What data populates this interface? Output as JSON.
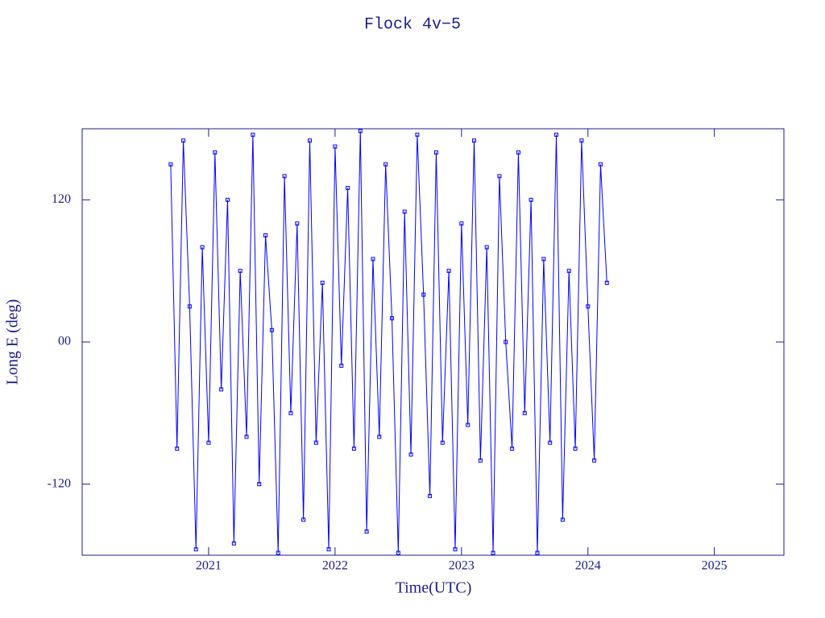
{
  "chart_data": {
    "type": "line",
    "title": "Flock 4v−5",
    "x_label": "Time(UTC)",
    "y_label": "Long E (deg)",
    "x": [
      2020.7,
      2020.75,
      2020.8,
      2020.85,
      2020.9,
      2020.95,
      2021.0,
      2021.05,
      2021.1,
      2021.15,
      2021.2,
      2021.25,
      2021.3,
      2021.35,
      2021.4,
      2021.45,
      2021.5,
      2021.55,
      2021.6,
      2021.65,
      2021.7,
      2021.75,
      2021.8,
      2021.85,
      2021.9,
      2021.95,
      2022.0,
      2022.05,
      2022.1,
      2022.15,
      2022.2,
      2022.25,
      2022.3,
      2022.35,
      2022.4,
      2022.45,
      2022.5,
      2022.55,
      2022.6,
      2022.65,
      2022.7,
      2022.75,
      2022.8,
      2022.85,
      2022.9,
      2022.95,
      2023.0,
      2023.05,
      2023.1,
      2023.15,
      2023.2,
      2023.25,
      2023.3,
      2023.35,
      2023.4,
      2023.45,
      2023.5,
      2023.55,
      2023.6,
      2023.65,
      2023.7,
      2023.75,
      2023.8,
      2023.85,
      2023.9,
      2023.95,
      2024.0,
      2024.05,
      2024.1,
      2024.15
    ],
    "values": [
      150,
      -90,
      170,
      30,
      -175,
      80,
      -85,
      160,
      -40,
      120,
      -170,
      60,
      -80,
      175,
      -120,
      90,
      10,
      -178,
      140,
      -60,
      100,
      -150,
      170,
      -85,
      50,
      -175,
      165,
      -20,
      130,
      -90,
      178,
      -160,
      70,
      -80,
      150,
      20,
      -178,
      110,
      -95,
      175,
      40,
      -130,
      160,
      -85,
      60,
      -175,
      100,
      -70,
      170,
      -100,
      80,
      -178,
      140,
      0,
      -90,
      160,
      -60,
      120,
      -178,
      70,
      -85,
      175,
      -150,
      60,
      -90,
      170,
      30,
      -100,
      150,
      50
    ],
    "color": "#0000ff",
    "axis_color": "#1c1c8c",
    "xlim": [
      2020.0,
      2025.55
    ],
    "xticks": [
      2021,
      2022,
      2023,
      2024,
      2025
    ],
    "ylim": [
      -180,
      180
    ],
    "yticks": [
      -120,
      {
        "value": 0,
        "label": "00"
      },
      120
    ]
  }
}
